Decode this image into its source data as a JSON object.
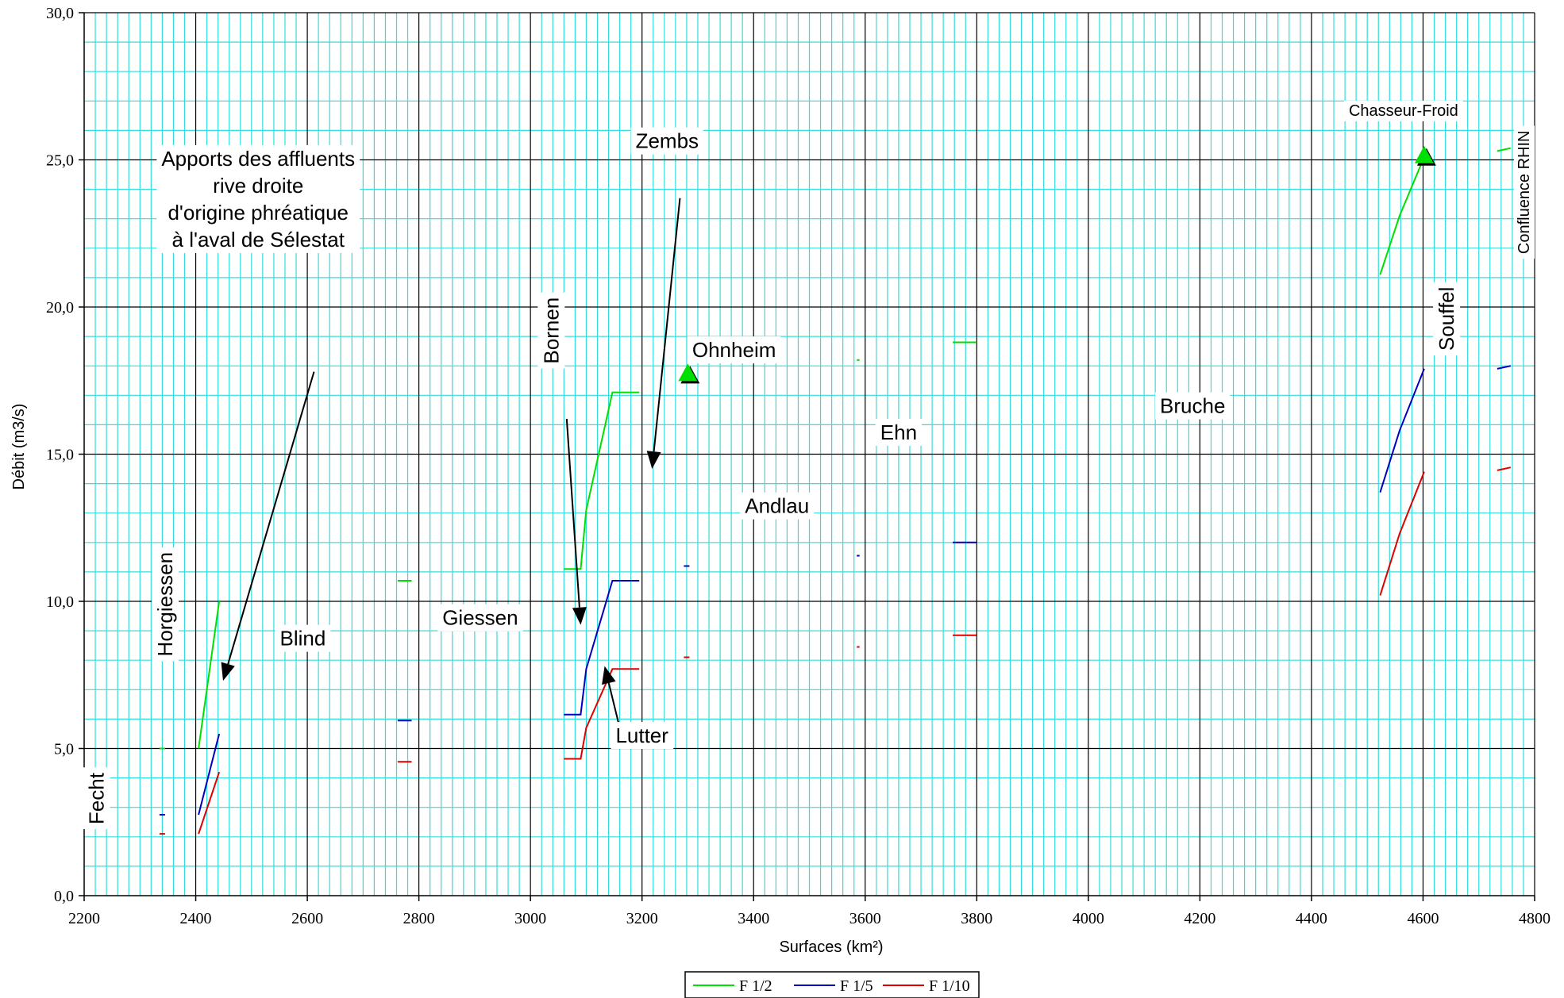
{
  "chart_data": {
    "type": "line",
    "title": "",
    "xlabel": "Surfaces (km²)",
    "ylabel": "Débit (m3/s)",
    "xlim": [
      2200,
      4800
    ],
    "ylim": [
      0,
      30
    ],
    "x_ticks": [
      "2200",
      "2400",
      "2600",
      "2800",
      "3000",
      "3200",
      "3400",
      "3600",
      "3800",
      "4000",
      "4200",
      "4400",
      "4600",
      "4800"
    ],
    "y_ticks": [
      "0,0",
      "5,0",
      "10,0",
      "15,0",
      "20,0",
      "25,0",
      "30,0"
    ],
    "grid": true,
    "legend_position": "bottom",
    "colors": {
      "F 1/2": "#00e000",
      "F 1/5": "#0000c0",
      "F 1/10": "#e00000",
      "grid_minor": "#33dddd",
      "grid_major": "#000000",
      "marker": "#00e000"
    },
    "series": [
      {
        "name": "F 1/2",
        "segments": [
          [
            [
              2335,
              5.0
            ],
            [
              2345,
              5.0
            ]
          ],
          [
            [
              2405,
              5.0
            ],
            [
              2442,
              10.0
            ]
          ],
          [
            [
              2762,
              10.7
            ],
            [
              2787,
              10.7
            ]
          ],
          [
            [
              3060,
              11.1
            ],
            [
              3090,
              11.1
            ],
            [
              3100,
              13.1
            ],
            [
              3147,
              17.1
            ],
            [
              3195,
              17.1
            ]
          ],
          [
            [
              3585,
              18.2
            ],
            [
              3590,
              18.2
            ]
          ],
          [
            [
              3757,
              18.8
            ],
            [
              3800,
              18.8
            ]
          ],
          [
            [
              4523,
              21.1
            ],
            [
              4558,
              23.1
            ],
            [
              4602,
              25.1
            ]
          ],
          [
            [
              4733,
              25.3
            ],
            [
              4757,
              25.4
            ]
          ]
        ]
      },
      {
        "name": "F 1/5",
        "segments": [
          [
            [
              2335,
              2.75
            ],
            [
              2345,
              2.75
            ]
          ],
          [
            [
              2405,
              2.75
            ],
            [
              2442,
              5.5
            ]
          ],
          [
            [
              2762,
              5.95
            ],
            [
              2787,
              5.95
            ]
          ],
          [
            [
              3060,
              6.15
            ],
            [
              3090,
              6.15
            ],
            [
              3100,
              7.7
            ],
            [
              3147,
              10.7
            ],
            [
              3195,
              10.7
            ]
          ],
          [
            [
              3275,
              11.2
            ],
            [
              3285,
              11.2
            ]
          ],
          [
            [
              3585,
              11.55
            ],
            [
              3590,
              11.55
            ]
          ],
          [
            [
              3757,
              12.0
            ],
            [
              3800,
              12.0
            ]
          ],
          [
            [
              4523,
              13.7
            ],
            [
              4558,
              15.8
            ],
            [
              4602,
              17.9
            ]
          ],
          [
            [
              4733,
              17.9
            ],
            [
              4757,
              18.0
            ]
          ]
        ]
      },
      {
        "name": "F 1/10",
        "segments": [
          [
            [
              2335,
              2.1
            ],
            [
              2345,
              2.1
            ]
          ],
          [
            [
              2405,
              2.1
            ],
            [
              2442,
              4.2
            ]
          ],
          [
            [
              2762,
              4.55
            ],
            [
              2787,
              4.55
            ]
          ],
          [
            [
              3060,
              4.65
            ],
            [
              3090,
              4.65
            ],
            [
              3100,
              5.7
            ],
            [
              3147,
              7.7
            ],
            [
              3195,
              7.7
            ]
          ],
          [
            [
              3275,
              8.1
            ],
            [
              3285,
              8.1
            ]
          ],
          [
            [
              3585,
              8.45
            ],
            [
              3590,
              8.45
            ]
          ],
          [
            [
              3757,
              8.85
            ],
            [
              3800,
              8.85
            ]
          ],
          [
            [
              4523,
              10.2
            ],
            [
              4558,
              12.3
            ],
            [
              4602,
              14.4
            ]
          ],
          [
            [
              4733,
              14.45
            ],
            [
              4757,
              14.55
            ]
          ]
        ]
      }
    ],
    "markers": [
      {
        "x": 3282,
        "y": 17.7
      },
      {
        "x": 4602,
        "y": 25.1
      }
    ],
    "labels": [
      {
        "text": "Fecht",
        "x": 2235,
        "y": 3.3,
        "rotate": true
      },
      {
        "text": "Horgiessen",
        "x": 2358,
        "y": 9.9,
        "rotate": true
      },
      {
        "text": "Blind",
        "x": 2592,
        "y": 8.5
      },
      {
        "text": "Giessen",
        "x": 2910,
        "y": 9.2
      },
      {
        "text": "Bornen",
        "x": 3050,
        "y": 19.2,
        "rotate": true
      },
      {
        "text": "Zembs",
        "x": 3245,
        "y": 25.4
      },
      {
        "text": "Ohnheim",
        "x": 3365,
        "y": 18.3
      },
      {
        "text": "Lutter",
        "x": 3200,
        "y": 5.2
      },
      {
        "text": "Andlau",
        "x": 3442,
        "y": 13.0
      },
      {
        "text": "Ehn",
        "x": 3660,
        "y": 15.5
      },
      {
        "text": "Bruche",
        "x": 4187,
        "y": 16.4
      },
      {
        "text": "Chasseur-Froid",
        "x": 4565,
        "y": 26.5,
        "small": true
      },
      {
        "text": "Souffel",
        "x": 4655,
        "y": 19.6,
        "rotate": true
      },
      {
        "text": "Confluence RHIN",
        "x": 4790,
        "y": 23.9,
        "rotate": true,
        "small": true
      }
    ],
    "annotation": {
      "lines": [
        "Apports des affluents",
        "rive droite",
        "d'origine phréatique",
        "à l'aval de Sélestat"
      ],
      "x": 2512,
      "y": 24.8
    },
    "arrows": [
      {
        "from": [
          2612,
          17.8
        ],
        "to": [
          2449,
          7.3
        ]
      },
      {
        "from": [
          3268,
          23.7
        ],
        "to": [
          3218,
          14.5
        ]
      },
      {
        "from": [
          3065,
          16.2
        ],
        "to": [
          3090,
          9.2
        ]
      },
      {
        "from": [
          3160,
          5.7
        ],
        "to": [
          3133,
          7.8
        ]
      }
    ]
  }
}
